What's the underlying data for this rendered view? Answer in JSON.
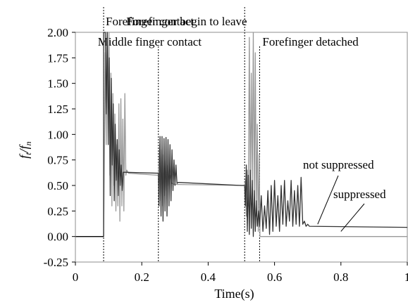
{
  "chart_data": {
    "type": "line",
    "xlabel": "Time(s)",
    "ylabel": "f_t/f_n",
    "ylabel_main": "f",
    "ylabel_sub1": "t",
    "ylabel_slash": "/f",
    "ylabel_sub2": "n",
    "xlim": [
      0,
      1
    ],
    "ylim": [
      -0.25,
      2.0
    ],
    "x_ticks": [
      0,
      0.2,
      0.4,
      0.6,
      0.8,
      1
    ],
    "x_tick_labels": [
      "0",
      "0.2",
      "0.4",
      "0.6",
      "0.8",
      "1"
    ],
    "y_ticks": [
      -0.25,
      0,
      0.25,
      0.5,
      0.75,
      1,
      1.25,
      1.5,
      1.75,
      2
    ],
    "y_tick_labels": [
      "-0.25",
      "0.00",
      "0.25",
      "0.50",
      "0.75",
      "1.00",
      "1.25",
      "1.50",
      "1.75",
      "2.00"
    ],
    "grid": false,
    "events": [
      {
        "x": 0.085,
        "label": "Forefinger contact"
      },
      {
        "x": 0.25,
        "label": "Middle finger contact"
      },
      {
        "x": 0.51,
        "label": "Forefinger begin to leave"
      },
      {
        "x": 0.555,
        "label": "Forefinger detached"
      }
    ],
    "series": [
      {
        "color": "#333333",
        "points": [
          [
            0,
            0
          ],
          [
            0.085,
            0
          ],
          [
            0.085,
            2.0
          ],
          [
            0.09,
            2.0
          ],
          [
            0.093,
            1.2
          ],
          [
            0.096,
            2.0
          ],
          [
            0.099,
            0.9
          ],
          [
            0.102,
            1.75
          ],
          [
            0.105,
            0.4
          ],
          [
            0.108,
            1.55
          ],
          [
            0.111,
            0.7
          ],
          [
            0.114,
            1.3
          ],
          [
            0.117,
            0.35
          ],
          [
            0.12,
            1.1
          ],
          [
            0.123,
            0.55
          ],
          [
            0.126,
            0.95
          ],
          [
            0.129,
            0.4
          ],
          [
            0.132,
            0.85
          ],
          [
            0.135,
            0.5
          ],
          [
            0.138,
            0.7
          ],
          [
            0.141,
            0.45
          ],
          [
            0.144,
            0.63
          ],
          [
            0.25,
            0.62
          ],
          [
            0.252,
            0.3
          ],
          [
            0.255,
            0.98
          ],
          [
            0.258,
            0.2
          ],
          [
            0.261,
            0.98
          ],
          [
            0.264,
            0.15
          ],
          [
            0.267,
            0.96
          ],
          [
            0.27,
            0.25
          ],
          [
            0.273,
            0.97
          ],
          [
            0.276,
            0.2
          ],
          [
            0.279,
            0.95
          ],
          [
            0.282,
            0.3
          ],
          [
            0.285,
            0.9
          ],
          [
            0.288,
            0.35
          ],
          [
            0.291,
            0.85
          ],
          [
            0.294,
            0.45
          ],
          [
            0.297,
            0.75
          ],
          [
            0.3,
            0.5
          ],
          [
            0.303,
            0.7
          ],
          [
            0.306,
            0.52
          ],
          [
            0.31,
            0.53
          ],
          [
            0.5,
            0.5
          ],
          [
            0.51,
            0.5
          ],
          [
            0.512,
            0.3
          ],
          [
            0.515,
            0.7
          ],
          [
            0.518,
            0.05
          ],
          [
            0.521,
            0.6
          ],
          [
            0.524,
            0.02
          ],
          [
            0.527,
            0.65
          ],
          [
            0.53,
            0.08
          ],
          [
            0.533,
            0.55
          ],
          [
            0.536,
            0.0
          ],
          [
            0.539,
            0.45
          ],
          [
            0.542,
            0.05
          ],
          [
            0.545,
            0.35
          ],
          [
            0.548,
            0.1
          ],
          [
            0.552,
            0.25
          ],
          [
            0.555,
            0.1
          ],
          [
            0.56,
            0.4
          ],
          [
            0.565,
            0.05
          ],
          [
            0.57,
            0.3
          ],
          [
            0.575,
            0.08
          ],
          [
            0.58,
            0.45
          ],
          [
            0.585,
            0.02
          ],
          [
            0.59,
            0.5
          ],
          [
            0.595,
            0.05
          ],
          [
            0.6,
            0.55
          ],
          [
            0.605,
            0.1
          ],
          [
            0.61,
            0.4
          ],
          [
            0.615,
            0.05
          ],
          [
            0.62,
            0.5
          ],
          [
            0.625,
            0.12
          ],
          [
            0.63,
            0.55
          ],
          [
            0.635,
            0.1
          ],
          [
            0.64,
            0.35
          ],
          [
            0.645,
            0.15
          ],
          [
            0.65,
            0.55
          ],
          [
            0.655,
            0.1
          ],
          [
            0.66,
            0.45
          ],
          [
            0.665,
            0.12
          ],
          [
            0.67,
            0.5
          ],
          [
            0.675,
            0.1
          ],
          [
            0.68,
            0.58
          ],
          [
            0.685,
            0.12
          ],
          [
            0.69,
            0.15
          ],
          [
            0.695,
            0.1
          ],
          [
            0.7,
            0.12
          ],
          [
            0.705,
            0.1
          ],
          [
            1.0,
            0.09
          ]
        ]
      },
      {
        "color": "#999999",
        "points": [
          [
            0,
            0
          ],
          [
            0.085,
            0
          ],
          [
            0.086,
            0.3
          ],
          [
            0.09,
            1.8
          ],
          [
            0.093,
            0.9
          ],
          [
            0.095,
            2.0
          ],
          [
            0.098,
            1.3
          ],
          [
            0.101,
            2.0
          ],
          [
            0.104,
            0.6
          ],
          [
            0.107,
            1.6
          ],
          [
            0.11,
            0.3
          ],
          [
            0.113,
            1.4
          ],
          [
            0.116,
            0.5
          ],
          [
            0.119,
            1.2
          ],
          [
            0.122,
            0.25
          ],
          [
            0.125,
            0.9
          ],
          [
            0.128,
            0.3
          ],
          [
            0.131,
            1.3
          ],
          [
            0.134,
            0.15
          ],
          [
            0.137,
            1.35
          ],
          [
            0.14,
            0.3
          ],
          [
            0.143,
            1.15
          ],
          [
            0.146,
            0.25
          ],
          [
            0.149,
            1.4
          ],
          [
            0.152,
            0.6
          ],
          [
            0.155,
            0.65
          ],
          [
            0.16,
            0.62
          ],
          [
            0.25,
            0.6
          ],
          [
            0.254,
            0.9
          ],
          [
            0.257,
            0.35
          ],
          [
            0.26,
            0.85
          ],
          [
            0.263,
            0.3
          ],
          [
            0.266,
            0.8
          ],
          [
            0.269,
            0.4
          ],
          [
            0.272,
            0.75
          ],
          [
            0.275,
            0.45
          ],
          [
            0.278,
            0.7
          ],
          [
            0.281,
            0.5
          ],
          [
            0.285,
            0.6
          ],
          [
            0.29,
            0.52
          ],
          [
            0.3,
            0.51
          ],
          [
            0.51,
            0.5
          ],
          [
            0.512,
            0.55
          ],
          [
            0.515,
            0.2
          ],
          [
            0.518,
            0.65
          ],
          [
            0.521,
            0.3
          ],
          [
            0.524,
            1.95
          ],
          [
            0.527,
            0.4
          ],
          [
            0.53,
            1.6
          ],
          [
            0.533,
            0.5
          ],
          [
            0.536,
            2.0
          ],
          [
            0.539,
            0.3
          ],
          [
            0.542,
            1.8
          ],
          [
            0.545,
            0.2
          ],
          [
            0.548,
            1.1
          ],
          [
            0.551,
            0.05
          ],
          [
            0.554,
            0.8
          ],
          [
            0.556,
            0.0
          ],
          [
            1.0,
            0.0
          ]
        ]
      }
    ],
    "annotations": [
      {
        "text": "not suppressed",
        "x": 0.73,
        "y": 0.12
      },
      {
        "text": "suppressed",
        "x": 0.8,
        "y": 0.05
      }
    ]
  }
}
